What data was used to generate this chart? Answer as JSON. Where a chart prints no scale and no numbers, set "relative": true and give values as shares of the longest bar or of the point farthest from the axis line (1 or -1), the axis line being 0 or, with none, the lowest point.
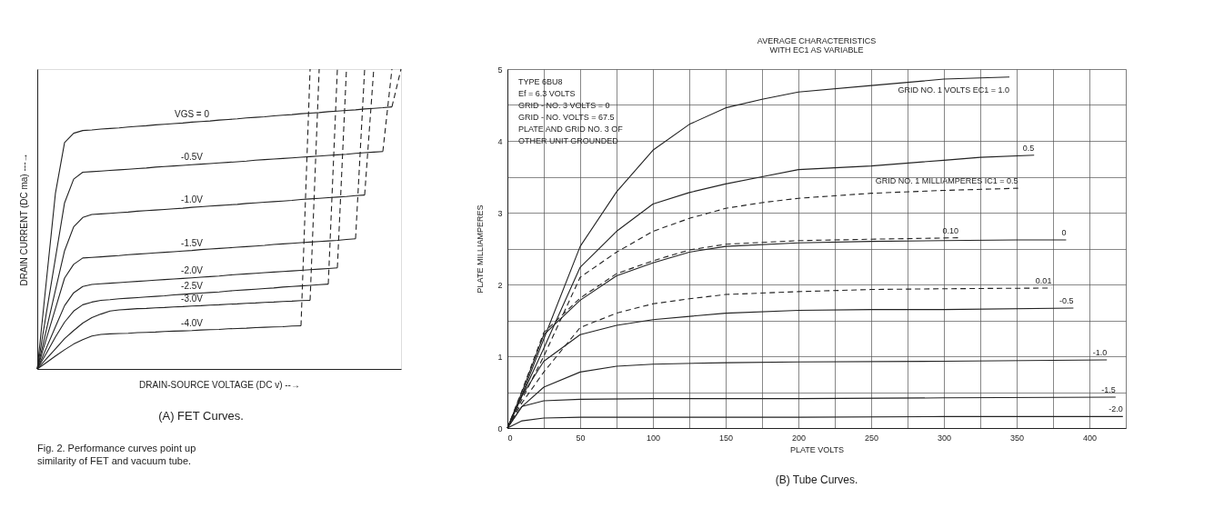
{
  "chart_data": [
    {
      "type": "line",
      "relative": true,
      "tick_labels": false,
      "xlabel": "DRAIN-SOURCE VOLTAGE (DC v) --→",
      "ylabel": "DRAIN CURRENT (DC ma) ---→",
      "annotations": [
        "(A) FET Curves.",
        "Fig. 2. Performance curves point up similarity of FET and vacuum tube."
      ],
      "categories": [
        null,
        null,
        null,
        null,
        null,
        null,
        null,
        null,
        null,
        null,
        null,
        null,
        null,
        null,
        null,
        null,
        null,
        null,
        null,
        null,
        null,
        null,
        null,
        null,
        null,
        null,
        null,
        null,
        null,
        null,
        null,
        null,
        null,
        null,
        null,
        null,
        null,
        null,
        null,
        null,
        null
      ],
      "series": [
        {
          "name": "VGS = 0",
          "color": "#222222",
          "values": [
            0,
            0.294,
            0.587,
            0.755,
            0.786,
            0.795,
            0.797,
            0.8,
            0.802,
            0.804,
            0.807,
            0.809,
            0.811,
            0.814,
            0.816,
            0.818,
            0.82,
            0.823,
            0.825,
            0.827,
            0.83,
            0.832,
            0.834,
            0.837,
            0.839,
            0.841,
            0.844,
            0.846,
            0.848,
            0.851,
            0.853,
            0.855,
            0.858,
            0.86,
            0.862,
            0.864,
            0.867,
            0.869,
            0.871,
            0.874,
            null
          ]
        },
        {
          "name": "-0.5V",
          "color": "#222222",
          "values": [
            0,
            0.187,
            0.37,
            0.554,
            0.633,
            0.656,
            0.658,
            0.66,
            0.662,
            0.664,
            0.666,
            0.668,
            0.67,
            0.673,
            0.675,
            0.677,
            0.679,
            0.681,
            0.683,
            0.685,
            0.687,
            0.689,
            0.691,
            0.693,
            0.696,
            0.698,
            0.7,
            0.702,
            0.704,
            0.706,
            0.708,
            0.71,
            0.712,
            0.714,
            0.716,
            0.719,
            0.721,
            0.723,
            0.725,
            null,
            null
          ]
        },
        {
          "name": "-1.0V",
          "color": "#222222",
          "values": [
            0,
            0.131,
            0.263,
            0.394,
            0.474,
            0.505,
            0.515,
            0.517,
            0.519,
            0.521,
            0.523,
            0.526,
            0.528,
            0.53,
            0.532,
            0.534,
            0.536,
            0.539,
            0.541,
            0.543,
            0.545,
            0.547,
            0.549,
            0.552,
            0.554,
            0.556,
            0.558,
            0.56,
            0.562,
            0.565,
            0.567,
            0.569,
            0.571,
            0.573,
            0.575,
            0.578,
            0.58,
            null,
            null,
            null,
            null
          ]
        },
        {
          "name": "-1.5V",
          "color": "#222222",
          "values": [
            0,
            0.101,
            0.202,
            0.303,
            0.349,
            0.37,
            0.372,
            0.374,
            0.376,
            0.378,
            0.381,
            0.383,
            0.385,
            0.387,
            0.389,
            0.391,
            0.393,
            0.395,
            0.398,
            0.4,
            0.402,
            0.404,
            0.406,
            0.408,
            0.41,
            0.412,
            0.415,
            0.417,
            0.419,
            0.421,
            0.423,
            0.425,
            0.427,
            0.429,
            0.432,
            0.434,
            null,
            null,
            null,
            null,
            null
          ]
        },
        {
          "name": "-2.0V",
          "color": "#222222",
          "values": [
            0,
            0.07,
            0.141,
            0.211,
            0.254,
            0.275,
            0.282,
            0.284,
            0.286,
            0.288,
            0.29,
            0.292,
            0.294,
            0.296,
            0.298,
            0.3,
            0.302,
            0.304,
            0.306,
            0.308,
            0.31,
            0.313,
            0.315,
            0.317,
            0.319,
            0.321,
            0.323,
            0.325,
            0.327,
            0.329,
            0.331,
            0.333,
            0.335,
            0.337,
            null,
            null,
            null,
            null,
            null,
            null,
            null
          ]
        },
        {
          "name": "-2.5V",
          "color": "#222222",
          "values": [
            0,
            0.052,
            0.107,
            0.156,
            0.193,
            0.214,
            0.223,
            0.229,
            0.231,
            0.234,
            0.236,
            0.238,
            0.24,
            0.242,
            0.244,
            0.247,
            0.249,
            0.251,
            0.253,
            0.255,
            0.257,
            0.26,
            0.262,
            0.264,
            0.266,
            0.268,
            0.27,
            0.273,
            0.275,
            0.277,
            0.279,
            0.281,
            0.283,
            null,
            null,
            null,
            null,
            null,
            null,
            null,
            null
          ]
        },
        {
          "name": "-3.0V",
          "color": "#222222",
          "values": [
            0,
            0.034,
            0.067,
            0.101,
            0.128,
            0.153,
            0.171,
            0.183,
            0.193,
            0.197,
            0.199,
            0.201,
            0.202,
            0.204,
            0.205,
            0.207,
            0.208,
            0.21,
            0.211,
            0.213,
            0.214,
            0.216,
            0.217,
            0.219,
            0.22,
            0.222,
            0.223,
            0.225,
            0.226,
            0.228,
            0.229,
            null,
            null,
            null,
            null,
            null,
            null,
            null,
            null,
            null,
            null
          ]
        },
        {
          "name": "-4.0V",
          "color": "#222222",
          "values": [
            0,
            0.021,
            0.043,
            0.064,
            0.083,
            0.098,
            0.11,
            0.115,
            0.117,
            0.118,
            0.119,
            0.121,
            0.122,
            0.123,
            0.125,
            0.126,
            0.127,
            0.128,
            0.13,
            0.131,
            0.132,
            0.134,
            0.135,
            0.136,
            0.138,
            0.139,
            0.14,
            0.141,
            0.143,
            0.144,
            null,
            null,
            null,
            null,
            null,
            null,
            null,
            null,
            null,
            null,
            null
          ]
        },
        {
          "color": "#222222",
          "line_style": "dashed",
          "values": [
            null,
            null,
            null,
            null,
            null,
            null,
            null,
            null,
            null,
            null,
            null,
            null,
            null,
            null,
            null,
            null,
            null,
            null,
            null,
            null,
            null,
            null,
            null,
            null,
            null,
            null,
            null,
            null,
            null,
            null,
            null,
            null,
            null,
            null,
            null,
            null,
            null,
            null,
            null,
            0.874,
            1.0
          ]
        },
        {
          "color": "#222222",
          "line_style": "dashed",
          "values": [
            null,
            null,
            null,
            null,
            null,
            null,
            null,
            null,
            null,
            null,
            null,
            null,
            null,
            null,
            null,
            null,
            null,
            null,
            null,
            null,
            null,
            null,
            null,
            null,
            null,
            null,
            null,
            null,
            null,
            null,
            null,
            null,
            null,
            null,
            null,
            null,
            null,
            null,
            0.725,
            1.0,
            null
          ]
        },
        {
          "color": "#222222",
          "line_style": "dashed",
          "values": [
            null,
            null,
            null,
            null,
            null,
            null,
            null,
            null,
            null,
            null,
            null,
            null,
            null,
            null,
            null,
            null,
            null,
            null,
            null,
            null,
            null,
            null,
            null,
            null,
            null,
            null,
            null,
            null,
            null,
            null,
            null,
            null,
            null,
            null,
            null,
            null,
            0.58,
            1.0,
            null,
            null,
            null
          ]
        },
        {
          "color": "#222222",
          "line_style": "dashed",
          "values": [
            null,
            null,
            null,
            null,
            null,
            null,
            null,
            null,
            null,
            null,
            null,
            null,
            null,
            null,
            null,
            null,
            null,
            null,
            null,
            null,
            null,
            null,
            null,
            null,
            null,
            null,
            null,
            null,
            null,
            null,
            null,
            null,
            null,
            null,
            null,
            0.434,
            1.0,
            null,
            null,
            null,
            null
          ]
        },
        {
          "color": "#222222",
          "line_style": "dashed",
          "values": [
            null,
            null,
            null,
            null,
            null,
            null,
            null,
            null,
            null,
            null,
            null,
            null,
            null,
            null,
            null,
            null,
            null,
            null,
            null,
            null,
            null,
            null,
            null,
            null,
            null,
            null,
            null,
            null,
            null,
            null,
            null,
            null,
            null,
            0.337,
            1.0,
            null,
            null,
            null,
            null,
            null,
            null
          ]
        },
        {
          "color": "#222222",
          "line_style": "dashed",
          "values": [
            null,
            null,
            null,
            null,
            null,
            null,
            null,
            null,
            null,
            null,
            null,
            null,
            null,
            null,
            null,
            null,
            null,
            null,
            null,
            null,
            null,
            null,
            null,
            null,
            null,
            null,
            null,
            null,
            null,
            null,
            null,
            null,
            0.283,
            1.0,
            null,
            null,
            null,
            null,
            null,
            null,
            null
          ]
        },
        {
          "color": "#222222",
          "line_style": "dashed",
          "values": [
            null,
            null,
            null,
            null,
            null,
            null,
            null,
            null,
            null,
            null,
            null,
            null,
            null,
            null,
            null,
            null,
            null,
            null,
            null,
            null,
            null,
            null,
            null,
            null,
            null,
            null,
            null,
            null,
            null,
            null,
            0.229,
            1.0,
            null,
            null,
            null,
            null,
            null,
            null,
            null,
            null,
            null
          ]
        },
        {
          "color": "#222222",
          "line_style": "dashed",
          "values": [
            null,
            null,
            null,
            null,
            null,
            null,
            null,
            null,
            null,
            null,
            null,
            null,
            null,
            null,
            null,
            null,
            null,
            null,
            null,
            null,
            null,
            null,
            null,
            null,
            null,
            null,
            null,
            null,
            null,
            0.144,
            1.0,
            null,
            null,
            null,
            null,
            null,
            null,
            null,
            null,
            null,
            null
          ]
        }
      ]
    },
    {
      "type": "line",
      "title": "AVERAGE CHARACTERISTICS",
      "subtitle": "WITH EC1 AS VARIABLE",
      "xlabel": "PLATE VOLTS",
      "ylabel": "PLATE MILLIAMPERES",
      "grid": true,
      "annotations": [
        "TYPE 6BU8",
        "Ef = 6.3 VOLTS",
        "GRID - NO. 3 VOLTS = 0",
        "GRID - NO. VOLTS = 67.5",
        "PLATE AND GRID NO. 3 OF",
        "OTHER UNIT GROUNDED",
        "(B) Tube Curves."
      ],
      "xlim": [
        0,
        425
      ],
      "ylim": [
        0,
        5
      ],
      "xticks": [
        0,
        {
          "value": 25,
          "label": null
        },
        50,
        {
          "value": 75,
          "label": null
        },
        100,
        {
          "value": 125,
          "label": null
        },
        150,
        {
          "value": 175,
          "label": null
        },
        200,
        {
          "value": 225,
          "label": null
        },
        250,
        {
          "value": 275,
          "label": null
        },
        300,
        {
          "value": 325,
          "label": null
        },
        350,
        {
          "value": 375,
          "label": null
        },
        400,
        {
          "value": 425,
          "label": null
        }
      ],
      "yticks": [
        0,
        {
          "value": 0.5,
          "label": null
        },
        1,
        {
          "value": 1.5,
          "label": null
        },
        2,
        {
          "value": 2.5,
          "label": null
        },
        3,
        {
          "value": 3.5,
          "label": null
        },
        4,
        {
          "value": 4.5,
          "label": null
        },
        5
      ],
      "series": [
        {
          "name": "GRID NO. 1 VOLTS EC1 = 1.0",
          "color": "#222222",
          "x": [
            0,
            10,
            25,
            50,
            75,
            100,
            125,
            150,
            175,
            200,
            250,
            300,
            345
          ],
          "values": [
            0,
            0.46,
            1.24,
            2.53,
            3.29,
            3.87,
            4.23,
            4.46,
            4.58,
            4.68,
            4.77,
            4.86,
            4.89
          ]
        },
        {
          "name": "0.5",
          "color": "#222222",
          "x": [
            0,
            10,
            25,
            50,
            75,
            100,
            125,
            150,
            175,
            200,
            250,
            300,
            325,
            362
          ],
          "values": [
            0,
            0.45,
            1.11,
            2.24,
            2.74,
            3.12,
            3.28,
            3.4,
            3.5,
            3.6,
            3.65,
            3.73,
            3.77,
            3.8
          ]
        },
        {
          "name": "GRID NO. 1 MILLIAMPERES IC1 = 0.5",
          "color": "#222222",
          "line_style": "dashed",
          "x": [
            0,
            10,
            25,
            50,
            75,
            100,
            125,
            150,
            175,
            200,
            250,
            300,
            351
          ],
          "values": [
            0,
            0.4,
            1.0,
            2.1,
            2.45,
            2.74,
            2.92,
            3.06,
            3.14,
            3.2,
            3.27,
            3.31,
            3.34
          ]
        },
        {
          "name": "0",
          "color": "#222222",
          "x": [
            0,
            10,
            25,
            50,
            75,
            100,
            125,
            150,
            200,
            250,
            300,
            350,
            384
          ],
          "values": [
            0,
            0.5,
            1.3,
            1.78,
            2.12,
            2.3,
            2.45,
            2.53,
            2.58,
            2.6,
            2.61,
            2.62,
            2.62
          ]
        },
        {
          "name": "0.10",
          "color": "#222222",
          "line_style": "dashed",
          "x": [
            0,
            10,
            25,
            50,
            75,
            100,
            125,
            150,
            200,
            250,
            310
          ],
          "values": [
            0,
            0.52,
            1.33,
            1.81,
            2.15,
            2.33,
            2.48,
            2.56,
            2.61,
            2.63,
            2.65
          ]
        },
        {
          "name": "0.01",
          "color": "#222222",
          "line_style": "dashed",
          "x": [
            0,
            10,
            25,
            50,
            75,
            100,
            125,
            150,
            200,
            250,
            300,
            374
          ],
          "values": [
            0,
            0.35,
            0.78,
            1.4,
            1.6,
            1.73,
            1.8,
            1.86,
            1.9,
            1.93,
            1.94,
            1.95
          ]
        },
        {
          "name": "-0.5",
          "color": "#222222",
          "x": [
            0,
            10,
            25,
            50,
            75,
            100,
            150,
            200,
            250,
            300,
            389
          ],
          "values": [
            0,
            0.45,
            0.93,
            1.3,
            1.43,
            1.51,
            1.6,
            1.64,
            1.65,
            1.65,
            1.67
          ]
        },
        {
          "name": "-1.0",
          "color": "#222222",
          "x": [
            0,
            10,
            25,
            50,
            75,
            100,
            150,
            200,
            300,
            412
          ],
          "values": [
            0,
            0.3,
            0.57,
            0.78,
            0.86,
            0.89,
            0.91,
            0.92,
            0.93,
            0.95
          ]
        },
        {
          "name": "-1.5",
          "color": "#222222",
          "x": [
            0,
            10,
            25,
            50,
            100,
            200,
            300,
            418
          ],
          "values": [
            0,
            0.3,
            0.38,
            0.4,
            0.41,
            0.41,
            0.42,
            0.43
          ]
        },
        {
          "name": "-2.0",
          "color": "#222222",
          "x": [
            0,
            10,
            25,
            50,
            100,
            200,
            300,
            423
          ],
          "values": [
            0,
            0.1,
            0.14,
            0.15,
            0.15,
            0.15,
            0.16,
            0.16
          ]
        }
      ]
    }
  ]
}
